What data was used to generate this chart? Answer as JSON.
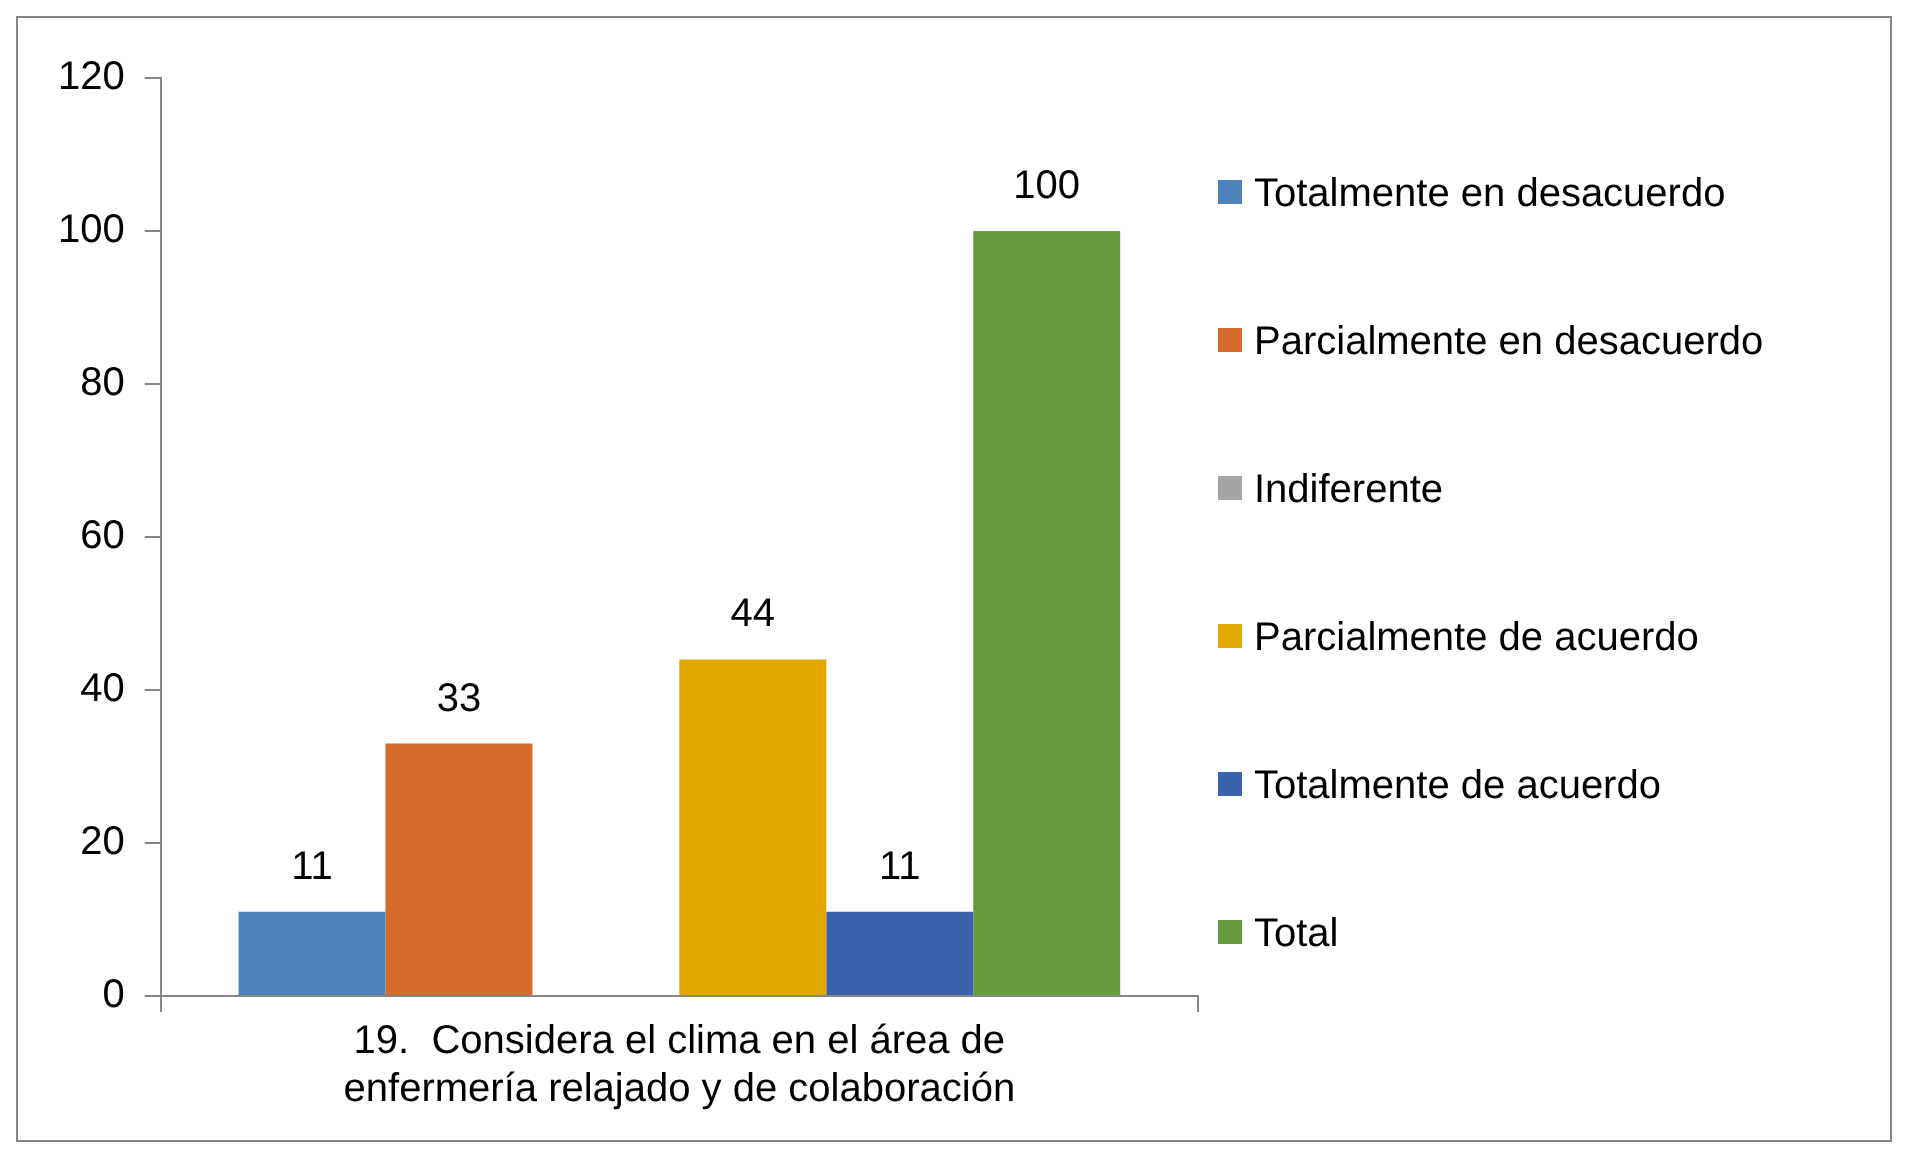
{
  "chart_data": {
    "type": "bar",
    "categories": [
      "19.  Considera el clima en el área de enfermería relajado y de colaboración"
    ],
    "series": [
      {
        "name": "Totalmente en desacuerdo",
        "color": "#4f81bd",
        "values": [
          11
        ],
        "value_labels": [
          "11"
        ]
      },
      {
        "name": "Parcialmente en desacuerdo",
        "color": "#d46b2a",
        "values": [
          33
        ],
        "value_labels": [
          "33"
        ]
      },
      {
        "name": "Indiferente",
        "color": "#a5a5a5",
        "values": [
          0
        ],
        "value_labels": [
          null
        ]
      },
      {
        "name": "Parcialmente de acuerdo",
        "color": "#e3a800",
        "values": [
          44
        ],
        "value_labels": [
          "44"
        ]
      },
      {
        "name": "Totalmente de acuerdo",
        "color": "#3a62ad",
        "values": [
          11
        ],
        "value_labels": [
          "11"
        ]
      },
      {
        "name": "Total",
        "color": "#659c3c",
        "values": [
          100
        ],
        "value_labels": [
          "100"
        ]
      }
    ],
    "ylim": [
      0,
      120
    ],
    "yticks": [
      0,
      20,
      40,
      60,
      80,
      100,
      120
    ],
    "grid": false,
    "legend": "right"
  }
}
